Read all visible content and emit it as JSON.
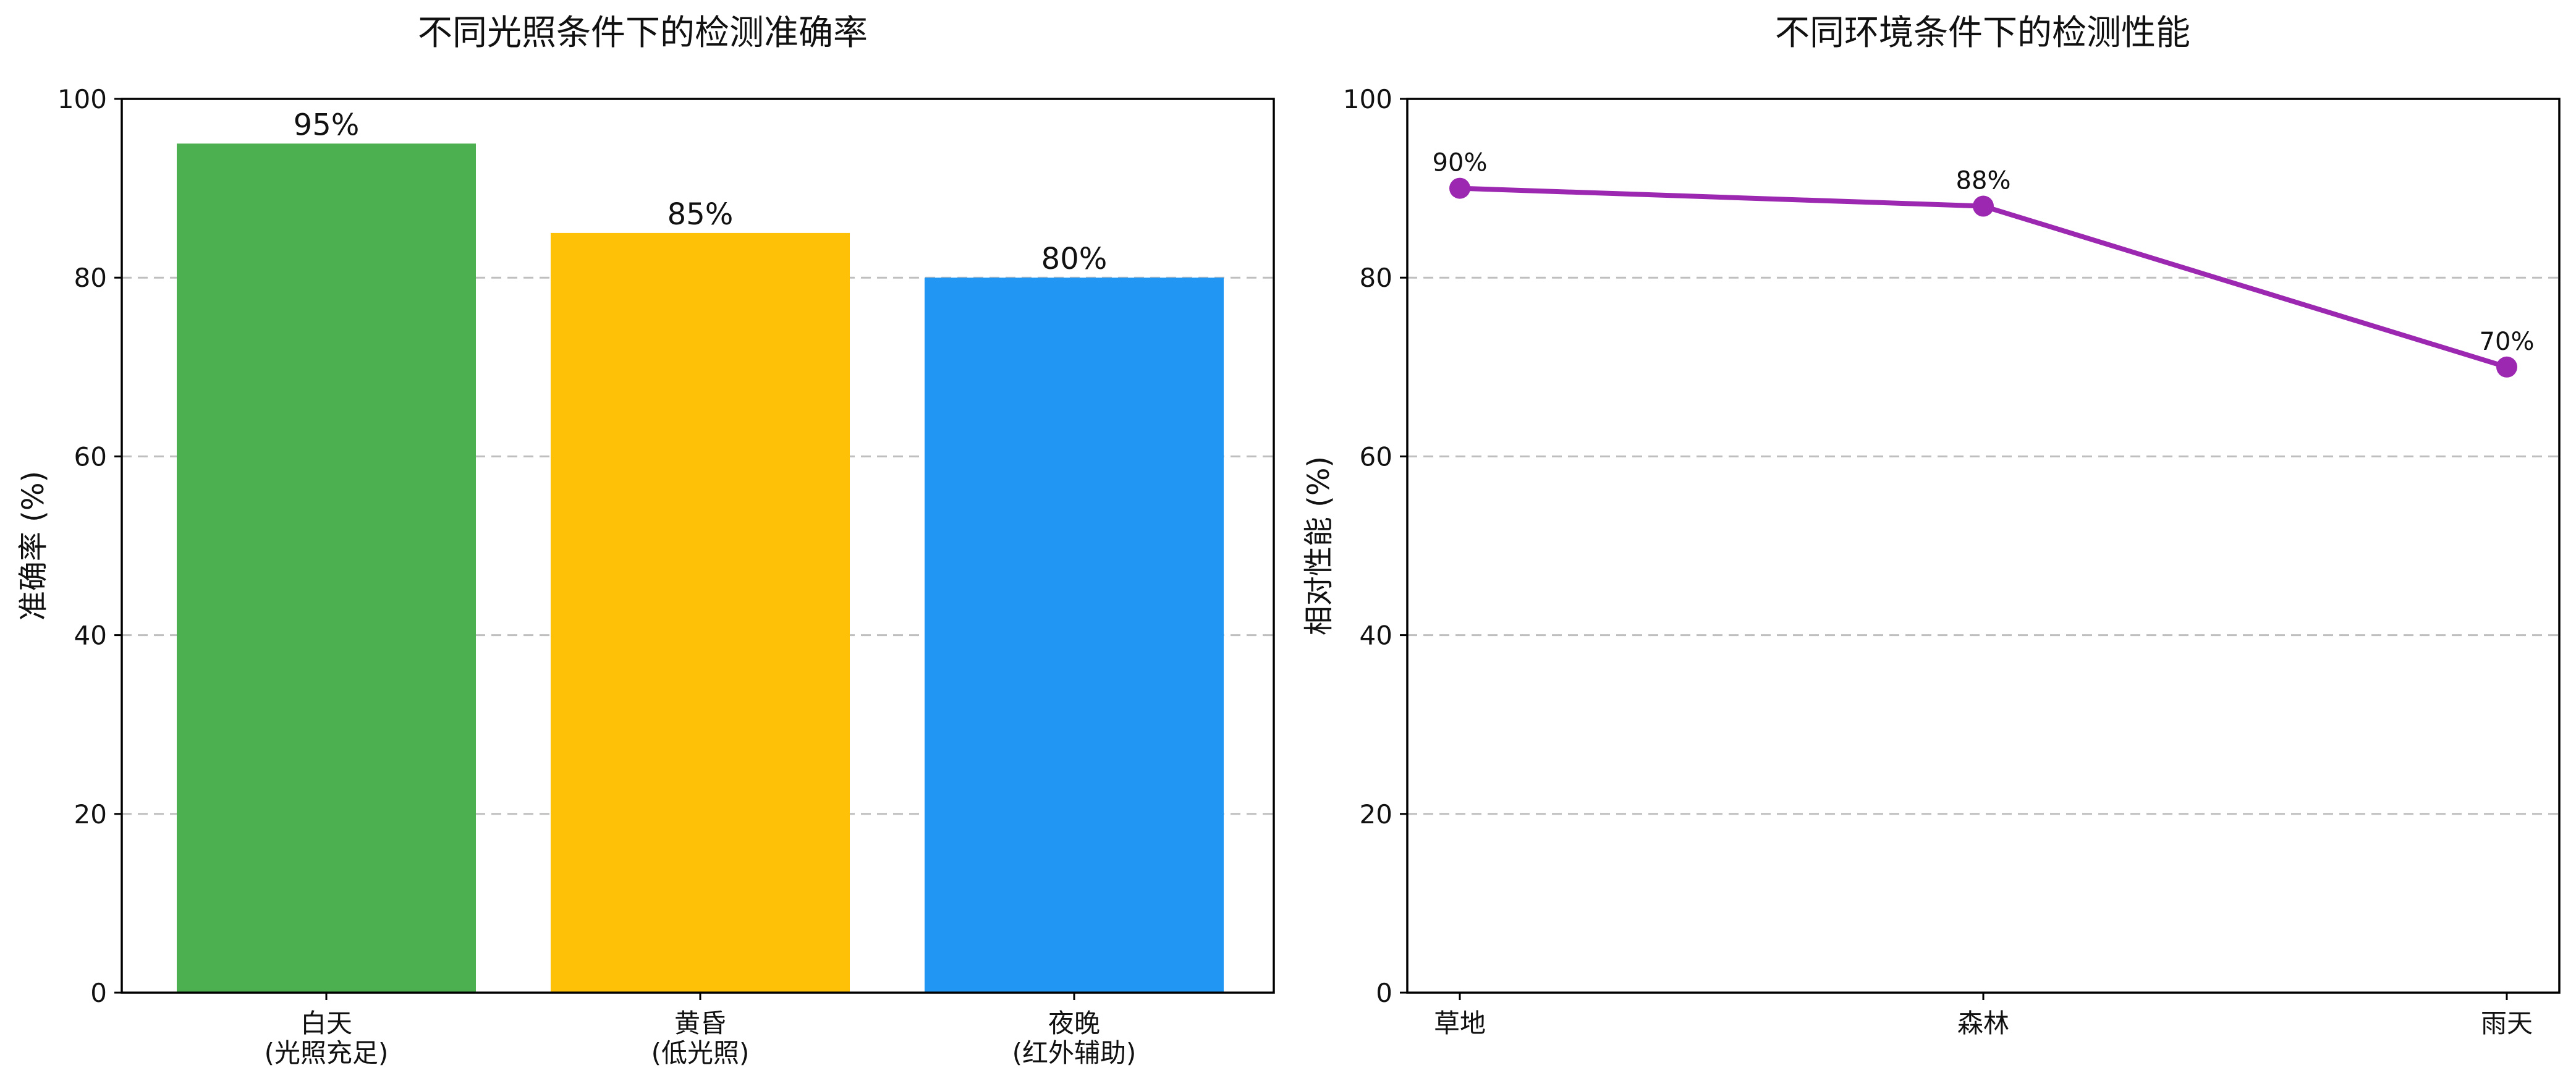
{
  "chart_data": [
    {
      "type": "bar",
      "title": "不同光照条件下的检测准确率",
      "xlabel": "",
      "ylabel": "准确率 (%)",
      "ylim": [
        0,
        100
      ],
      "yticks": [
        0,
        20,
        40,
        60,
        80,
        100
      ],
      "grid": "y-dashed",
      "categories": [
        {
          "line1": "白天",
          "line2": "(光照充足)"
        },
        {
          "line1": "黄昏",
          "line2": "(低光照)"
        },
        {
          "line1": "夜晚",
          "line2": "(红外辅助)"
        }
      ],
      "values": [
        95,
        85,
        80
      ],
      "value_labels": [
        "95%",
        "85%",
        "80%"
      ],
      "colors": [
        "#4caf50",
        "#ffc107",
        "#2196f3"
      ]
    },
    {
      "type": "line",
      "title": "不同环境条件下的检测性能",
      "xlabel": "",
      "ylabel": "相对性能 (%)",
      "ylim": [
        0,
        100
      ],
      "yticks": [
        0,
        20,
        40,
        60,
        80,
        100
      ],
      "grid": "y-dashed",
      "categories": [
        "草地",
        "森林",
        "雨天"
      ],
      "values": [
        90,
        88,
        70
      ],
      "value_labels": [
        "90%",
        "88%",
        "70%"
      ],
      "color": "#9c27b0",
      "marker": "circle"
    }
  ]
}
